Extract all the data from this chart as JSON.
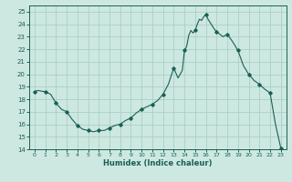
{
  "xlabel": "Humidex (Indice chaleur)",
  "ylabel": "",
  "bg_color": "#cde8e0",
  "grid_color": "#a8cfc7",
  "line_color": "#1a5f55",
  "marker_color": "#1a5f55",
  "xlim": [
    -0.5,
    23.5
  ],
  "ylim": [
    14,
    25.5
  ],
  "yticks": [
    14,
    15,
    16,
    17,
    18,
    19,
    20,
    21,
    22,
    23,
    24,
    25
  ],
  "xticks": [
    0,
    1,
    2,
    3,
    4,
    5,
    6,
    7,
    8,
    9,
    10,
    11,
    12,
    13,
    14,
    15,
    16,
    17,
    18,
    19,
    20,
    21,
    22,
    23
  ],
  "x": [
    0,
    0.3,
    1,
    1.5,
    2,
    2.5,
    3,
    3.5,
    4,
    4.5,
    5,
    5.5,
    6,
    6.5,
    7,
    7.5,
    8,
    8.5,
    9,
    9.5,
    10,
    10.5,
    11,
    11.5,
    12,
    12.5,
    13,
    13.2,
    13.4,
    13.6,
    13.8,
    14,
    14.2,
    14.4,
    14.6,
    14.8,
    15,
    15.2,
    15.4,
    15.6,
    15.8,
    16,
    16.2,
    16.5,
    16.8,
    17,
    17.3,
    17.6,
    18,
    18.5,
    19,
    19.5,
    20,
    20.5,
    21,
    21.5,
    22,
    22.5,
    23
  ],
  "y": [
    18.6,
    18.7,
    18.6,
    18.4,
    17.7,
    17.2,
    17.0,
    16.4,
    15.9,
    15.6,
    15.5,
    15.4,
    15.5,
    15.5,
    15.7,
    15.9,
    16.0,
    16.3,
    16.5,
    16.9,
    17.2,
    17.4,
    17.6,
    17.9,
    18.4,
    19.2,
    20.5,
    20.1,
    19.7,
    20.0,
    20.3,
    21.9,
    22.2,
    23.1,
    23.5,
    23.3,
    23.5,
    24.0,
    24.4,
    24.3,
    24.6,
    24.8,
    24.4,
    24.0,
    23.6,
    23.4,
    23.2,
    23.0,
    23.2,
    22.6,
    21.9,
    20.7,
    20.0,
    19.5,
    19.2,
    18.8,
    18.5,
    16.0,
    14.1
  ],
  "marker_x": [
    0,
    1,
    2,
    3,
    4,
    5,
    6,
    7,
    8,
    9,
    10,
    11,
    12,
    13,
    14,
    15,
    16,
    17,
    18,
    19,
    20,
    21,
    22,
    23
  ],
  "marker_y": [
    18.6,
    18.6,
    17.7,
    17.0,
    15.9,
    15.5,
    15.5,
    15.7,
    16.0,
    16.5,
    17.2,
    17.6,
    18.4,
    20.5,
    21.9,
    23.5,
    24.8,
    23.4,
    23.2,
    21.9,
    20.0,
    19.2,
    18.5,
    14.1
  ]
}
